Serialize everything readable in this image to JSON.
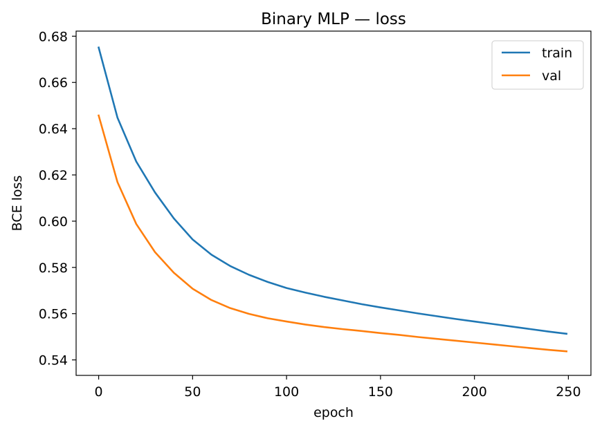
{
  "chart_data": {
    "type": "line",
    "title": "Binary MLP — loss",
    "xlabel": "epoch",
    "ylabel": "BCE loss",
    "xlim": [
      -12,
      262
    ],
    "ylim": [
      0.5333,
      0.6822
    ],
    "xticks": [
      0,
      50,
      100,
      150,
      200,
      250
    ],
    "yticks": [
      0.54,
      0.56,
      0.58,
      0.6,
      0.62,
      0.64,
      0.66,
      0.68
    ],
    "ytick_labels": [
      "0.54",
      "0.56",
      "0.58",
      "0.60",
      "0.62",
      "0.64",
      "0.66",
      "0.68"
    ],
    "xtick_labels": [
      "0",
      "50",
      "100",
      "150",
      "200",
      "250"
    ],
    "grid": false,
    "legend_position": "top-right",
    "x": [
      0,
      10,
      20,
      30,
      40,
      50,
      60,
      70,
      80,
      90,
      100,
      110,
      120,
      130,
      140,
      150,
      160,
      170,
      180,
      190,
      200,
      210,
      220,
      230,
      240,
      249
    ],
    "series": [
      {
        "name": "train",
        "color": "#1f77b4",
        "values": [
          0.6751,
          0.6448,
          0.6258,
          0.6124,
          0.6012,
          0.5921,
          0.5855,
          0.5806,
          0.5768,
          0.5737,
          0.5711,
          0.5691,
          0.5673,
          0.5657,
          0.5641,
          0.5627,
          0.5614,
          0.5601,
          0.5589,
          0.5577,
          0.5566,
          0.5555,
          0.5544,
          0.5533,
          0.5522,
          0.5513
        ]
      },
      {
        "name": "val",
        "color": "#ff7f0e",
        "values": [
          0.6457,
          0.6169,
          0.5988,
          0.5866,
          0.5777,
          0.5708,
          0.5659,
          0.5624,
          0.5599,
          0.558,
          0.5566,
          0.5553,
          0.5542,
          0.5533,
          0.5525,
          0.5516,
          0.5508,
          0.5499,
          0.5491,
          0.5483,
          0.5475,
          0.5467,
          0.5459,
          0.5451,
          0.5443,
          0.5437
        ]
      }
    ]
  }
}
